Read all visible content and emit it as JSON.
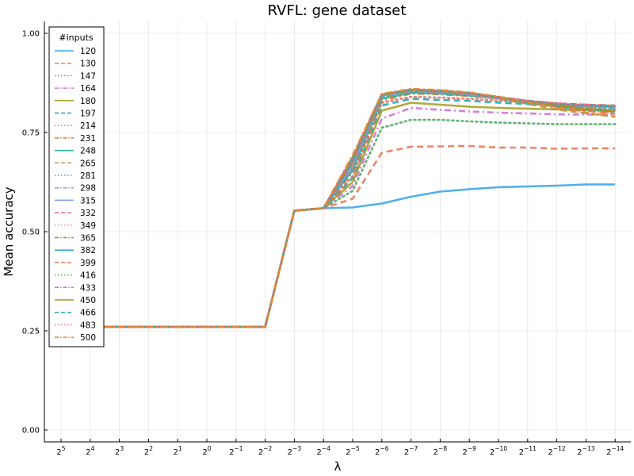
{
  "chart_data": {
    "type": "line",
    "title": "RVFL: gene dataset",
    "xlabel": "λ",
    "ylabel": "Mean accuracy",
    "ylim": [
      -0.03,
      1.03
    ],
    "grid": true,
    "legend_title": "#inputs",
    "legend_position": "top-left",
    "x_tick_labels": [
      {
        "base": "2",
        "exp": "5"
      },
      {
        "base": "2",
        "exp": "4"
      },
      {
        "base": "2",
        "exp": "3"
      },
      {
        "base": "2",
        "exp": "2"
      },
      {
        "base": "2",
        "exp": "1"
      },
      {
        "base": "2",
        "exp": "0"
      },
      {
        "base": "2",
        "exp": "−1"
      },
      {
        "base": "2",
        "exp": "−2"
      },
      {
        "base": "2",
        "exp": "−3"
      },
      {
        "base": "2",
        "exp": "−4"
      },
      {
        "base": "2",
        "exp": "−5"
      },
      {
        "base": "2",
        "exp": "−6"
      },
      {
        "base": "2",
        "exp": "−7"
      },
      {
        "base": "2",
        "exp": "−8"
      },
      {
        "base": "2",
        "exp": "−9"
      },
      {
        "base": "2",
        "exp": "−10"
      },
      {
        "base": "2",
        "exp": "−11"
      },
      {
        "base": "2",
        "exp": "−12"
      },
      {
        "base": "2",
        "exp": "−13"
      },
      {
        "base": "2",
        "exp": "−14"
      }
    ],
    "y_ticks": [
      "0.00",
      "0.25",
      "0.50",
      "0.75",
      "1.00"
    ],
    "x": [
      5,
      4,
      3,
      2,
      1,
      0,
      -1,
      -2,
      -3,
      -4,
      -5,
      -6,
      -7,
      -8,
      -9,
      -10,
      -11,
      -12,
      -13,
      -14
    ],
    "series": [
      {
        "name": "120",
        "color": "#3da5ed",
        "dash": "solid",
        "values": [
          0.26,
          0.26,
          0.26,
          0.26,
          0.26,
          0.26,
          0.26,
          0.26,
          0.553,
          0.559,
          0.561,
          0.571,
          0.588,
          0.601,
          0.607,
          0.612,
          0.614,
          0.616,
          0.619,
          0.619
        ]
      },
      {
        "name": "130",
        "color": "#e8795a",
        "dash": "dash",
        "values": [
          0.26,
          0.26,
          0.26,
          0.26,
          0.26,
          0.26,
          0.26,
          0.26,
          0.553,
          0.559,
          0.583,
          0.699,
          0.714,
          0.715,
          0.716,
          0.712,
          0.712,
          0.709,
          0.71,
          0.71
        ]
      },
      {
        "name": "147",
        "color": "#4fa860",
        "dash": "dot",
        "values": [
          0.26,
          0.26,
          0.26,
          0.26,
          0.26,
          0.26,
          0.26,
          0.26,
          0.553,
          0.559,
          0.603,
          0.762,
          0.782,
          0.782,
          0.778,
          0.775,
          0.773,
          0.771,
          0.771,
          0.771
        ]
      },
      {
        "name": "164",
        "color": "#d070d8",
        "dash": "dashdot",
        "values": [
          0.26,
          0.26,
          0.26,
          0.26,
          0.26,
          0.26,
          0.26,
          0.26,
          0.553,
          0.559,
          0.615,
          0.785,
          0.812,
          0.807,
          0.803,
          0.8,
          0.798,
          0.796,
          0.795,
          0.795
        ]
      },
      {
        "name": "180",
        "color": "#a8a024",
        "dash": "solid",
        "values": [
          0.26,
          0.26,
          0.26,
          0.26,
          0.26,
          0.26,
          0.26,
          0.26,
          0.553,
          0.559,
          0.625,
          0.805,
          0.825,
          0.82,
          0.815,
          0.812,
          0.81,
          0.808,
          0.806,
          0.806
        ]
      },
      {
        "name": "197",
        "color": "#1fa8b0",
        "dash": "dash",
        "values": [
          0.26,
          0.26,
          0.26,
          0.26,
          0.26,
          0.26,
          0.26,
          0.26,
          0.553,
          0.559,
          0.635,
          0.818,
          0.835,
          0.832,
          0.83,
          0.825,
          0.822,
          0.818,
          0.815,
          0.812
        ]
      },
      {
        "name": "214",
        "color": "#ec6f6a",
        "dash": "dot",
        "values": [
          0.26,
          0.26,
          0.26,
          0.26,
          0.26,
          0.26,
          0.26,
          0.26,
          0.553,
          0.559,
          0.64,
          0.825,
          0.84,
          0.838,
          0.835,
          0.83,
          0.826,
          0.822,
          0.818,
          0.815
        ]
      },
      {
        "name": "231",
        "color": "#e07c2c",
        "dash": "dashdot",
        "values": [
          0.26,
          0.26,
          0.26,
          0.26,
          0.26,
          0.26,
          0.26,
          0.26,
          0.553,
          0.559,
          0.65,
          0.83,
          0.848,
          0.846,
          0.842,
          0.835,
          0.826,
          0.815,
          0.805,
          0.8
        ]
      },
      {
        "name": "248",
        "color": "#20b09e",
        "dash": "solid",
        "values": [
          0.26,
          0.26,
          0.26,
          0.26,
          0.26,
          0.26,
          0.26,
          0.26,
          0.553,
          0.559,
          0.655,
          0.835,
          0.85,
          0.848,
          0.843,
          0.836,
          0.826,
          0.815,
          0.808,
          0.803
        ]
      },
      {
        "name": "265",
        "color": "#b09850",
        "dash": "dash",
        "values": [
          0.26,
          0.26,
          0.26,
          0.26,
          0.26,
          0.26,
          0.26,
          0.26,
          0.553,
          0.559,
          0.66,
          0.838,
          0.852,
          0.85,
          0.845,
          0.835,
          0.822,
          0.808,
          0.798,
          0.79
        ]
      },
      {
        "name": "281",
        "color": "#30b0c0",
        "dash": "dot",
        "values": [
          0.26,
          0.26,
          0.26,
          0.26,
          0.26,
          0.26,
          0.26,
          0.26,
          0.553,
          0.559,
          0.662,
          0.84,
          0.853,
          0.851,
          0.846,
          0.836,
          0.825,
          0.815,
          0.81,
          0.808
        ]
      },
      {
        "name": "298",
        "color": "#a090e0",
        "dash": "dashdot",
        "values": [
          0.26,
          0.26,
          0.26,
          0.26,
          0.26,
          0.26,
          0.26,
          0.26,
          0.553,
          0.559,
          0.665,
          0.842,
          0.855,
          0.852,
          0.846,
          0.836,
          0.828,
          0.82,
          0.815,
          0.812
        ]
      },
      {
        "name": "315",
        "color": "#7aa0e8",
        "dash": "solid",
        "values": [
          0.26,
          0.26,
          0.26,
          0.26,
          0.26,
          0.26,
          0.26,
          0.26,
          0.553,
          0.559,
          0.668,
          0.843,
          0.855,
          0.852,
          0.847,
          0.837,
          0.828,
          0.82,
          0.816,
          0.814
        ]
      },
      {
        "name": "332",
        "color": "#f06878",
        "dash": "dash",
        "values": [
          0.26,
          0.26,
          0.26,
          0.26,
          0.26,
          0.26,
          0.26,
          0.26,
          0.553,
          0.559,
          0.67,
          0.843,
          0.856,
          0.853,
          0.847,
          0.837,
          0.828,
          0.821,
          0.817,
          0.815
        ]
      },
      {
        "name": "349",
        "color": "#e090c0",
        "dash": "dot",
        "values": [
          0.26,
          0.26,
          0.26,
          0.26,
          0.26,
          0.26,
          0.26,
          0.26,
          0.553,
          0.559,
          0.672,
          0.844,
          0.856,
          0.853,
          0.847,
          0.837,
          0.829,
          0.822,
          0.818,
          0.816
        ]
      },
      {
        "name": "365",
        "color": "#80a040",
        "dash": "dashdot",
        "values": [
          0.26,
          0.26,
          0.26,
          0.26,
          0.26,
          0.26,
          0.26,
          0.26,
          0.553,
          0.559,
          0.675,
          0.844,
          0.856,
          0.853,
          0.848,
          0.838,
          0.829,
          0.822,
          0.818,
          0.816
        ]
      },
      {
        "name": "382",
        "color": "#2aa0d8",
        "dash": "solid",
        "values": [
          0.26,
          0.26,
          0.26,
          0.26,
          0.26,
          0.26,
          0.26,
          0.26,
          0.553,
          0.559,
          0.677,
          0.845,
          0.857,
          0.854,
          0.848,
          0.838,
          0.829,
          0.822,
          0.818,
          0.816
        ]
      },
      {
        "name": "399",
        "color": "#e8795a",
        "dash": "dash",
        "values": [
          0.26,
          0.26,
          0.26,
          0.26,
          0.26,
          0.26,
          0.26,
          0.26,
          0.553,
          0.559,
          0.68,
          0.845,
          0.857,
          0.855,
          0.849,
          0.838,
          0.826,
          0.815,
          0.805,
          0.797
        ]
      },
      {
        "name": "416",
        "color": "#4fa860",
        "dash": "dot",
        "values": [
          0.26,
          0.26,
          0.26,
          0.26,
          0.26,
          0.26,
          0.26,
          0.26,
          0.553,
          0.559,
          0.682,
          0.845,
          0.857,
          0.855,
          0.849,
          0.838,
          0.83,
          0.822,
          0.818,
          0.816
        ]
      },
      {
        "name": "433",
        "color": "#c870d8",
        "dash": "dashdot",
        "values": [
          0.26,
          0.26,
          0.26,
          0.26,
          0.26,
          0.26,
          0.26,
          0.26,
          0.553,
          0.559,
          0.684,
          0.846,
          0.858,
          0.855,
          0.849,
          0.839,
          0.83,
          0.823,
          0.82,
          0.817
        ]
      },
      {
        "name": "450",
        "color": "#b09020",
        "dash": "solid",
        "values": [
          0.26,
          0.26,
          0.26,
          0.26,
          0.26,
          0.26,
          0.26,
          0.26,
          0.553,
          0.559,
          0.686,
          0.846,
          0.858,
          0.855,
          0.85,
          0.839,
          0.828,
          0.818,
          0.81,
          0.805
        ]
      },
      {
        "name": "466",
        "color": "#20a8b8",
        "dash": "dash",
        "values": [
          0.26,
          0.26,
          0.26,
          0.26,
          0.26,
          0.26,
          0.26,
          0.26,
          0.553,
          0.559,
          0.688,
          0.846,
          0.858,
          0.856,
          0.85,
          0.839,
          0.83,
          0.823,
          0.82,
          0.818
        ]
      },
      {
        "name": "483",
        "color": "#f07070",
        "dash": "dot",
        "values": [
          0.26,
          0.26,
          0.26,
          0.26,
          0.26,
          0.26,
          0.26,
          0.26,
          0.553,
          0.559,
          0.69,
          0.847,
          0.859,
          0.856,
          0.85,
          0.84,
          0.83,
          0.824,
          0.82,
          0.818
        ]
      },
      {
        "name": "500",
        "color": "#e08a30",
        "dash": "dashdot",
        "values": [
          0.26,
          0.26,
          0.26,
          0.26,
          0.26,
          0.26,
          0.26,
          0.26,
          0.553,
          0.559,
          0.693,
          0.847,
          0.86,
          0.857,
          0.851,
          0.84,
          0.826,
          0.812,
          0.8,
          0.79
        ]
      }
    ]
  }
}
